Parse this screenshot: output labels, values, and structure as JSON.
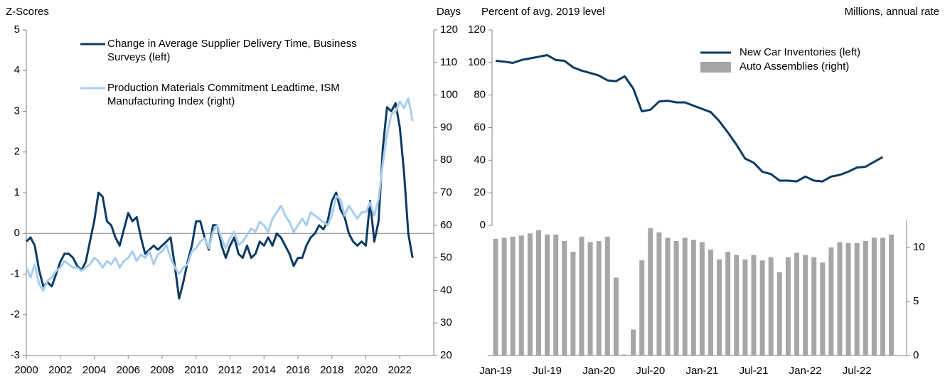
{
  "chart_data": [
    {
      "type": "line",
      "y_label": "Z-Scores",
      "y2_label": "Days",
      "x": [
        2000,
        2000.25,
        2000.5,
        2000.75,
        2001,
        2001.25,
        2001.5,
        2001.75,
        2002,
        2002.25,
        2002.5,
        2002.75,
        2003,
        2003.25,
        2003.5,
        2003.75,
        2004,
        2004.25,
        2004.5,
        2004.75,
        2005,
        2005.25,
        2005.5,
        2005.75,
        2006,
        2006.25,
        2006.5,
        2006.75,
        2007,
        2007.25,
        2007.5,
        2007.75,
        2008,
        2008.25,
        2008.5,
        2008.75,
        2009,
        2009.25,
        2009.5,
        2009.75,
        2010,
        2010.25,
        2010.5,
        2010.75,
        2011,
        2011.25,
        2011.5,
        2011.75,
        2012,
        2012.25,
        2012.5,
        2012.75,
        2013,
        2013.25,
        2013.5,
        2013.75,
        2014,
        2014.25,
        2014.5,
        2014.75,
        2015,
        2015.25,
        2015.5,
        2015.75,
        2016,
        2016.25,
        2016.5,
        2016.75,
        2017,
        2017.25,
        2017.5,
        2017.75,
        2018,
        2018.25,
        2018.5,
        2018.75,
        2019,
        2019.25,
        2019.5,
        2019.75,
        2020,
        2020.25,
        2020.5,
        2020.75,
        2021,
        2021.25,
        2021.5,
        2021.75,
        2022,
        2022.25,
        2022.5,
        2022.75
      ],
      "series": [
        {
          "name": "Change in Average Supplier Delivery Time, Business Surveys (left)",
          "color": "#0c3b63",
          "axis": "y",
          "values": [
            -0.2,
            -0.1,
            -0.3,
            -0.9,
            -1.3,
            -1.2,
            -1.3,
            -1.0,
            -0.7,
            -0.5,
            -0.5,
            -0.6,
            -0.8,
            -0.9,
            -0.7,
            -0.2,
            0.3,
            1.0,
            0.9,
            0.3,
            0.2,
            -0.1,
            -0.3,
            0.1,
            0.5,
            0.3,
            0.4,
            -0.1,
            -0.5,
            -0.4,
            -0.3,
            -0.4,
            -0.3,
            -0.2,
            -0.1,
            -0.8,
            -1.6,
            -1.2,
            -0.7,
            -0.3,
            0.3,
            0.3,
            -0.1,
            -0.4,
            0.2,
            0.2,
            -0.3,
            -0.6,
            -0.3,
            -0.1,
            -0.5,
            -0.6,
            -0.3,
            -0.6,
            -0.5,
            -0.2,
            -0.3,
            -0.1,
            -0.3,
            0.0,
            -0.1,
            -0.3,
            -0.5,
            -0.8,
            -0.6,
            -0.6,
            -0.3,
            -0.1,
            0.0,
            0.2,
            0.1,
            0.3,
            0.8,
            1.0,
            0.6,
            0.4,
            0.0,
            -0.2,
            -0.3,
            -0.2,
            -0.3,
            0.8,
            -0.2,
            0.3,
            2.1,
            3.1,
            3.0,
            3.2,
            2.6,
            1.5,
            0.0,
            -0.6
          ]
        },
        {
          "name": "Production Materials Commitment Leadtime, ISM Manufacturing Index (right)",
          "color": "#a8cdee",
          "axis": "y2",
          "values": [
            47,
            44,
            48,
            42,
            40,
            43,
            44,
            46,
            47,
            49,
            48,
            47,
            47,
            46,
            47,
            48,
            50,
            49,
            47,
            49,
            48,
            50,
            47,
            49,
            50,
            52,
            49,
            51,
            50,
            52,
            48,
            51,
            52,
            54,
            50,
            47,
            45,
            47,
            48,
            52,
            53,
            55,
            56,
            53,
            58,
            60,
            56,
            53,
            56,
            58,
            54,
            55,
            57,
            59,
            58,
            61,
            60,
            58,
            62,
            64,
            66,
            63,
            61,
            58,
            60,
            62,
            60,
            64,
            63,
            62,
            61,
            60,
            63,
            69,
            68,
            63,
            66,
            64,
            62,
            64,
            64,
            67,
            63,
            68,
            79,
            88,
            94,
            95,
            98,
            96,
            99,
            92
          ]
        }
      ],
      "xlim": [
        2000,
        2024
      ],
      "xticks": [
        2000,
        2002,
        2004,
        2006,
        2008,
        2010,
        2012,
        2014,
        2016,
        2018,
        2020,
        2022
      ],
      "ylim": [
        -3,
        5
      ],
      "yticks": [
        -3,
        -2,
        -1,
        0,
        1,
        2,
        3,
        4,
        5
      ],
      "y2lim": [
        20,
        120
      ],
      "y2ticks": [
        20,
        30,
        40,
        50,
        60,
        70,
        80,
        90,
        100,
        110,
        120
      ],
      "hline": 0,
      "legend": "upper left"
    },
    {
      "type": "combo",
      "y_label": "Percent of avg. 2019 level",
      "y2_label": "Millions, annual rate",
      "categories": [
        "Jan-19",
        null,
        null,
        null,
        null,
        null,
        "Jul-19",
        null,
        null,
        null,
        null,
        null,
        "Jan-20",
        null,
        null,
        null,
        null,
        null,
        "Jul-20",
        null,
        null,
        null,
        null,
        null,
        "Jan-21",
        null,
        null,
        null,
        null,
        null,
        "Jul-21",
        null,
        null,
        null,
        null,
        null,
        "Jan-22",
        null,
        null,
        null,
        null,
        null,
        "Jul-22",
        null,
        null,
        null,
        null
      ],
      "series": [
        {
          "name": "New Car Inventories (left)",
          "type": "line",
          "color": "#0c3b63",
          "axis": "y",
          "values": [
            101,
            100.5,
            99.7,
            101.5,
            102.5,
            103.5,
            104.5,
            101.5,
            101,
            97,
            95,
            93.5,
            92,
            89,
            88.5,
            91.5,
            84,
            70,
            71,
            76,
            76.5,
            75.5,
            75.5,
            73.5,
            71.5,
            69.5,
            64,
            57,
            49.5,
            41,
            38.5,
            33,
            31.5,
            27.5,
            27.5,
            27,
            30,
            27.5,
            27,
            30,
            31,
            33,
            35.5,
            36,
            39,
            42,
            null
          ]
        },
        {
          "name": "Auto Assemblies (right)",
          "type": "bar",
          "color": "#a6a6a6",
          "axis": "y2",
          "values": [
            10.8,
            10.9,
            11.0,
            11.1,
            11.3,
            11.6,
            11.2,
            11.2,
            10.6,
            9.6,
            11.0,
            10.5,
            10.6,
            11.0,
            7.2,
            0.1,
            2.4,
            8.8,
            11.8,
            11.4,
            10.9,
            10.6,
            10.9,
            10.7,
            10.5,
            9.8,
            8.9,
            9.6,
            9.3,
            8.9,
            9.3,
            8.8,
            9.1,
            7.7,
            9.1,
            9.5,
            9.3,
            9.1,
            8.6,
            10.0,
            10.5,
            10.4,
            10.4,
            10.6,
            10.9,
            10.9,
            11.2
          ]
        }
      ],
      "ylim": [
        0,
        120
      ],
      "yticks": [
        0,
        20,
        40,
        60,
        80,
        100,
        120
      ],
      "y2lim": [
        0,
        12.5
      ],
      "y2ticks": [
        0,
        5,
        10
      ],
      "legend": "upper right"
    }
  ]
}
